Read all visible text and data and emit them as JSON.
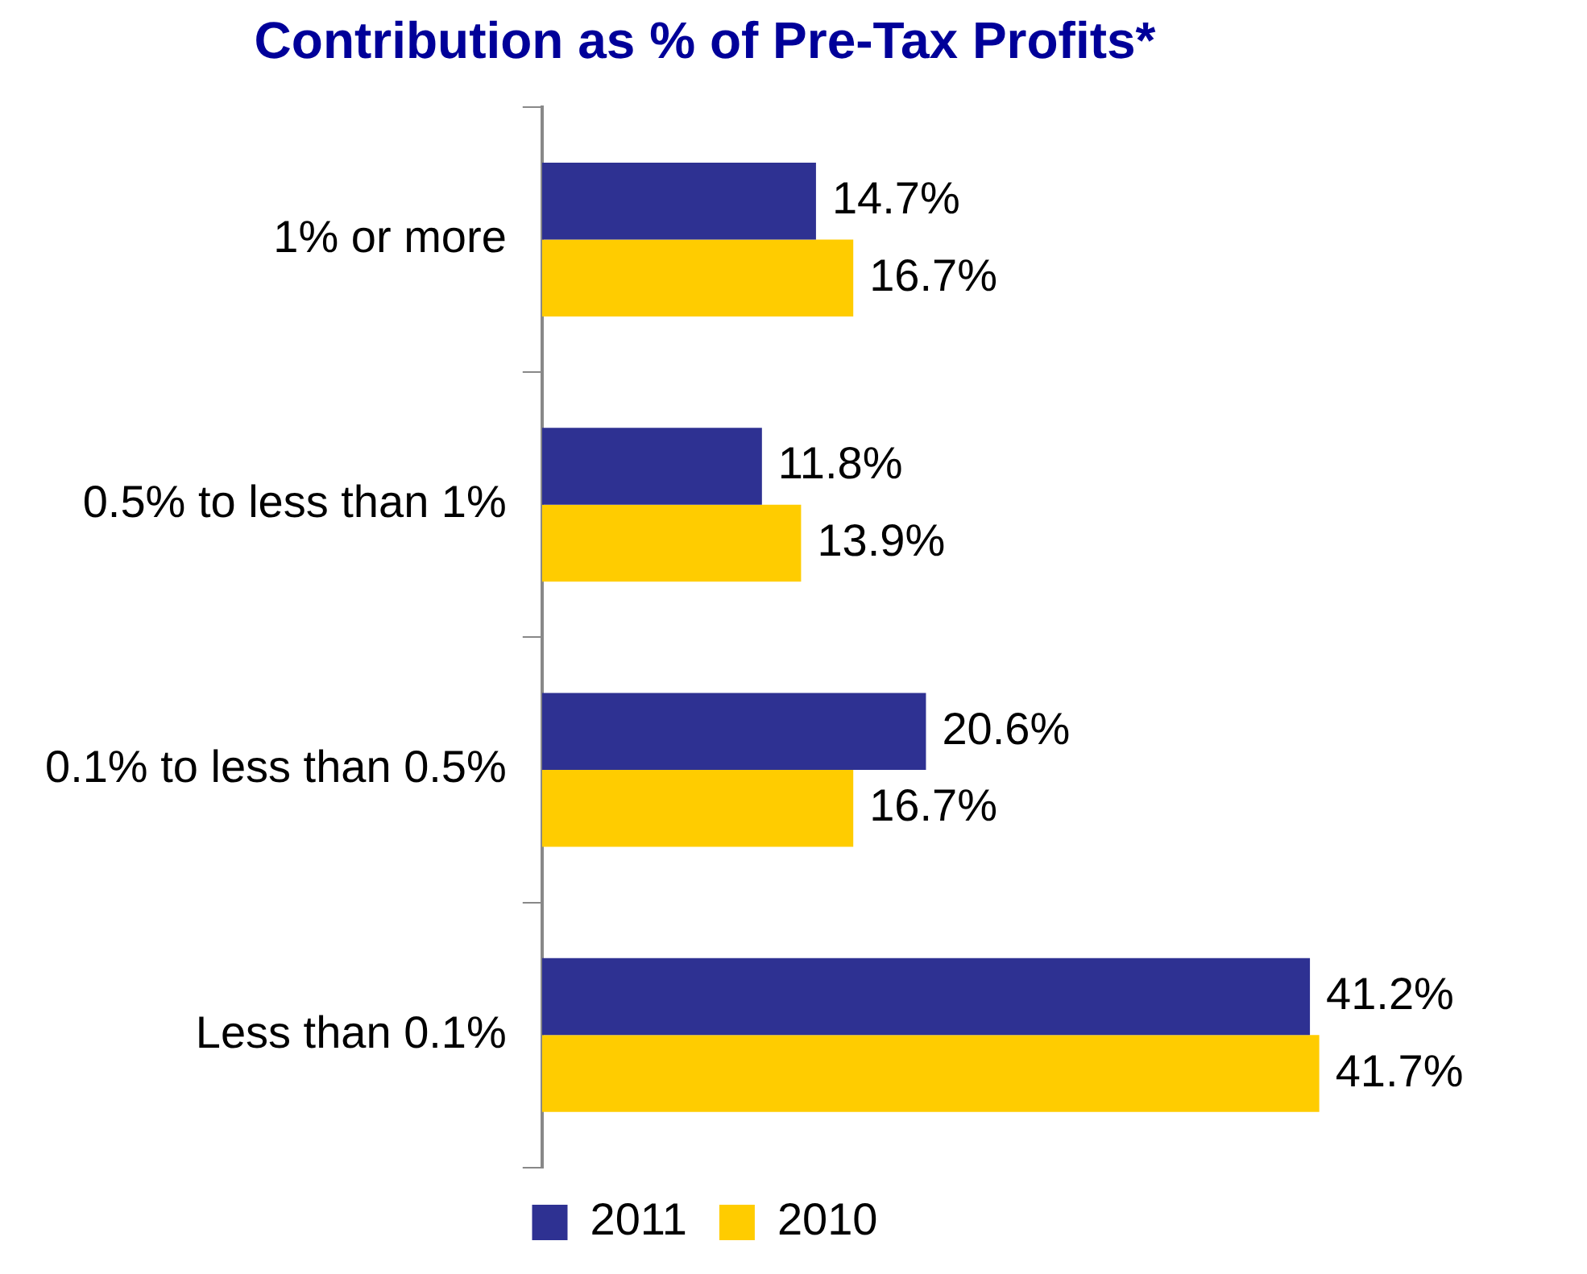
{
  "chart_data": {
    "type": "bar",
    "orientation": "horizontal",
    "title": "Contribution as % of Pre-Tax Profits*",
    "categories": [
      "1% or more",
      "0.5% to less than 1%",
      "0.1% to less than 0.5%",
      "Less than 0.1%"
    ],
    "series": [
      {
        "name": "2011",
        "color": "#2e3192",
        "values": [
          14.7,
          11.8,
          20.6,
          41.2
        ],
        "value_labels": [
          "14.7%",
          "11.8%",
          "20.6%",
          "41.2%"
        ]
      },
      {
        "name": "2010",
        "color": "#ffcc00",
        "values": [
          16.7,
          13.9,
          16.7,
          41.7
        ],
        "value_labels": [
          "16.7%",
          "13.9%",
          "16.7%",
          "41.7%"
        ]
      }
    ],
    "legend": "bottom",
    "grid": false
  }
}
